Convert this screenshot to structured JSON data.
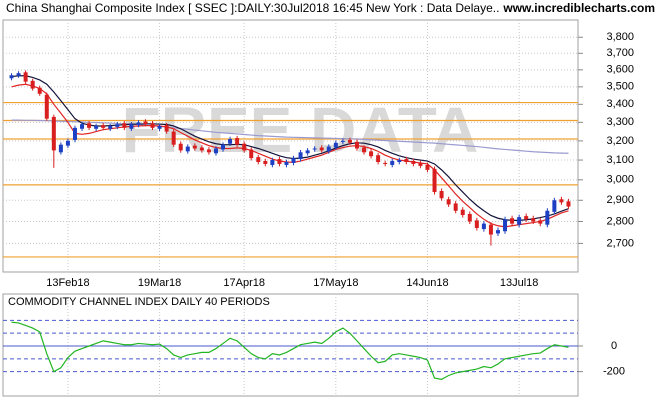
{
  "header": {
    "site": "www.incrediblecharts.com"
  },
  "chart_data": [
    {
      "type": "candlestick",
      "title": "China Shanghai Composite Index [ SSEC ]:DAILY:30Jul2018 16:45 New York : Data Delaye..",
      "watermark": "FREE DATA",
      "categories": [
        null,
        null,
        null,
        null,
        null,
        null,
        null,
        null,
        "13Feb18",
        null,
        null,
        null,
        null,
        null,
        null,
        null,
        null,
        null,
        null,
        null,
        null,
        "19Mar18",
        null,
        null,
        null,
        null,
        null,
        null,
        null,
        null,
        null,
        null,
        null,
        "17Apr18",
        null,
        null,
        null,
        null,
        null,
        null,
        null,
        null,
        null,
        null,
        null,
        null,
        "17May18",
        null,
        null,
        null,
        null,
        null,
        null,
        null,
        null,
        null,
        null,
        null,
        null,
        "14Jun18",
        null,
        null,
        null,
        null,
        null,
        null,
        null,
        null,
        null,
        null,
        null,
        null,
        "13Jul18",
        null,
        null,
        null,
        null,
        null,
        null,
        null
      ],
      "open": [
        3550,
        3565,
        3585,
        3535,
        3495,
        3455,
        3330,
        3140,
        3175,
        3205,
        3265,
        3295,
        3265,
        3285,
        3265,
        3275,
        3295,
        3265,
        3285,
        3305,
        3295,
        3265,
        3285,
        3250,
        3185,
        3145,
        3175,
        3165,
        3155,
        3135,
        3155,
        3185,
        3215,
        3185,
        3155,
        3115,
        3095,
        3075,
        3105,
        3075,
        3085,
        3105,
        3135,
        3155,
        3165,
        3145,
        3165,
        3195,
        3205,
        3195,
        3165,
        3145,
        3125,
        3085,
        3075,
        3090,
        3105,
        3095,
        3085,
        3075,
        3055,
        2945,
        2905,
        2885,
        2855,
        2835,
        2805,
        2765,
        2785,
        2745,
        2755,
        2815,
        2785,
        2825,
        2815,
        2805,
        2785,
        2845,
        2905,
        2895
      ],
      "high": [
        3580,
        3592,
        3597,
        3547,
        3507,
        3467,
        3342,
        3192,
        3212,
        3282,
        3302,
        3307,
        3292,
        3297,
        3292,
        3302,
        3307,
        3302,
        3312,
        3317,
        3307,
        3292,
        3297,
        3262,
        3197,
        3182,
        3187,
        3177,
        3167,
        3172,
        3192,
        3222,
        3227,
        3197,
        3167,
        3127,
        3107,
        3112,
        3117,
        3102,
        3122,
        3152,
        3162,
        3172,
        3177,
        3182,
        3202,
        3212,
        3217,
        3207,
        3177,
        3157,
        3137,
        3097,
        3107,
        3112,
        3117,
        3107,
        3097,
        3087,
        3067,
        2957,
        2917,
        2897,
        2867,
        2847,
        2817,
        2802,
        2797,
        2772,
        2822,
        2827,
        2832,
        2837,
        2827,
        2817,
        2862,
        2912,
        2917,
        2907
      ],
      "low": [
        3538,
        3553,
        3518,
        3478,
        3448,
        3308,
        3060,
        3128,
        3163,
        3193,
        3253,
        3258,
        3253,
        3258,
        3253,
        3263,
        3258,
        3253,
        3273,
        3278,
        3258,
        3253,
        3238,
        3168,
        3138,
        3133,
        3148,
        3138,
        3128,
        3123,
        3143,
        3173,
        3168,
        3138,
        3098,
        3078,
        3068,
        3063,
        3068,
        3063,
        3073,
        3093,
        3123,
        3143,
        3138,
        3133,
        3153,
        3183,
        3178,
        3148,
        3128,
        3108,
        3078,
        3068,
        3063,
        3078,
        3078,
        3068,
        3058,
        3038,
        2928,
        2898,
        2868,
        2838,
        2818,
        2788,
        2758,
        2753,
        2690,
        2733,
        2743,
        2778,
        2773,
        2798,
        2788,
        2778,
        2773,
        2833,
        2878,
        2858
      ],
      "close": [
        3568,
        3580,
        3530,
        3490,
        3460,
        3320,
        3150,
        3180,
        3200,
        3270,
        3290,
        3270,
        3280,
        3270,
        3280,
        3290,
        3270,
        3290,
        3300,
        3290,
        3270,
        3280,
        3250,
        3180,
        3150,
        3170,
        3160,
        3150,
        3140,
        3160,
        3180,
        3210,
        3180,
        3150,
        3110,
        3090,
        3080,
        3100,
        3080,
        3090,
        3110,
        3140,
        3150,
        3160,
        3150,
        3170,
        3190,
        3200,
        3190,
        3160,
        3140,
        3120,
        3090,
        3080,
        3095,
        3100,
        3090,
        3080,
        3070,
        3050,
        2940,
        2910,
        2880,
        2850,
        2830,
        2800,
        2770,
        2790,
        2740,
        2760,
        2810,
        2790,
        2820,
        2810,
        2800,
        2790,
        2850,
        2900,
        2890,
        2870
      ],
      "up_color": "#1c3fc4",
      "down_color": "#d81e1e",
      "series": [
        {
          "color": "#9a9ad0",
          "values": [
            3312,
            3312,
            3311,
            3311,
            3310,
            3309,
            3308,
            3306,
            3305,
            3303,
            3302,
            3300,
            3299,
            3297,
            3296,
            3294,
            3292,
            3290,
            3288,
            3285,
            3282,
            3278,
            3274,
            3270,
            3266,
            3262,
            3258,
            3254,
            3250,
            3246,
            3243,
            3240,
            3237,
            3234,
            3231,
            3228,
            3226,
            3224,
            3222,
            3220,
            3219,
            3218,
            3217,
            3216,
            3215,
            3214,
            3213,
            3212,
            3211,
            3210,
            3208,
            3206,
            3204,
            3202,
            3200,
            3198,
            3196,
            3194,
            3192,
            3190,
            3188,
            3185,
            3182,
            3179,
            3176,
            3173,
            3170,
            3166,
            3162,
            3158,
            3155,
            3152,
            3149,
            3146,
            3143,
            3141,
            3139,
            3137,
            3136,
            3135
          ]
        },
        {
          "color": "#14143c",
          "values": [
            3560,
            3565,
            3565,
            3555,
            3540,
            3515,
            3470,
            3420,
            3370,
            3320,
            3295,
            3285,
            3280,
            3280,
            3282,
            3285,
            3287,
            3290,
            3290,
            3292,
            3292,
            3290,
            3288,
            3280,
            3265,
            3245,
            3225,
            3210,
            3195,
            3185,
            3180,
            3180,
            3182,
            3180,
            3170,
            3160,
            3148,
            3135,
            3122,
            3112,
            3108,
            3110,
            3115,
            3125,
            3135,
            3148,
            3162,
            3175,
            3185,
            3190,
            3188,
            3180,
            3168,
            3150,
            3135,
            3122,
            3112,
            3105,
            3100,
            3095,
            3080,
            3050,
            3015,
            2975,
            2940,
            2905,
            2875,
            2850,
            2828,
            2815,
            2808,
            2805,
            2805,
            2808,
            2812,
            2818,
            2825,
            2835,
            2848,
            2860
          ]
        },
        {
          "color": "#e02424",
          "values": [
            3500,
            3510,
            3515,
            3505,
            3490,
            3460,
            3400,
            3350,
            3300,
            3240,
            3235,
            3240,
            3250,
            3260,
            3265,
            3270,
            3275,
            3278,
            3280,
            3282,
            3282,
            3280,
            3275,
            3265,
            3245,
            3225,
            3205,
            3190,
            3175,
            3165,
            3160,
            3160,
            3163,
            3160,
            3150,
            3135,
            3120,
            3105,
            3095,
            3090,
            3088,
            3095,
            3105,
            3115,
            3125,
            3140,
            3155,
            3165,
            3172,
            3175,
            3170,
            3160,
            3145,
            3125,
            3110,
            3100,
            3095,
            3090,
            3085,
            3080,
            3050,
            3010,
            2970,
            2930,
            2895,
            2865,
            2835,
            2810,
            2790,
            2780,
            2775,
            2780,
            2785,
            2790,
            2795,
            2800,
            2810,
            2825,
            2840,
            2850
          ]
        }
      ],
      "levels": [
        3410,
        3310,
        3210,
        2975,
        2640
      ],
      "level_color": "#f0a030",
      "log_scale": true,
      "grid": true,
      "ylim": [
        2575,
        3910
      ],
      "yticks": [
        {
          "value": 2700,
          "label": "2,700"
        },
        {
          "value": 2800,
          "label": "2,800"
        },
        {
          "value": 2900,
          "label": "2,900"
        },
        {
          "value": 3000,
          "label": "3,000"
        },
        {
          "value": 3100,
          "label": "3,100"
        },
        {
          "value": 3200,
          "label": "3,200"
        },
        {
          "value": 3300,
          "label": "3,300"
        },
        {
          "value": 3400,
          "label": "3,400"
        },
        {
          "value": 3500,
          "label": "3,500"
        },
        {
          "value": 3600,
          "label": "3,600"
        },
        {
          "value": 3700,
          "label": "3,700"
        },
        {
          "value": 3800,
          "label": "3,800"
        }
      ]
    },
    {
      "type": "line",
      "title": "COMMODITY CHANNEL INDEX DAILY 40 PERIODS",
      "series": [
        {
          "color": "#22b522",
          "values": [
            185,
            180,
            160,
            140,
            110,
            -60,
            -200,
            -170,
            -90,
            -40,
            -20,
            0,
            20,
            40,
            30,
            20,
            10,
            10,
            20,
            15,
            10,
            15,
            -20,
            -70,
            -90,
            -70,
            -60,
            -50,
            -50,
            -20,
            20,
            60,
            40,
            -10,
            -60,
            -90,
            -100,
            -60,
            -70,
            -50,
            -20,
            10,
            20,
            30,
            20,
            60,
            110,
            140,
            100,
            40,
            -20,
            -80,
            -130,
            -120,
            -70,
            -60,
            -70,
            -80,
            -90,
            -110,
            -250,
            -260,
            -230,
            -210,
            -200,
            -190,
            -180,
            -160,
            -170,
            -140,
            -100,
            -90,
            -80,
            -70,
            -60,
            -55,
            -20,
            10,
            0,
            -10
          ]
        }
      ],
      "levels": [
        200,
        100,
        0,
        -100,
        -200
      ],
      "level_color": "#4a5ad0",
      "ylim": [
        -390,
        390
      ],
      "yticks": [
        0,
        -200
      ]
    }
  ]
}
